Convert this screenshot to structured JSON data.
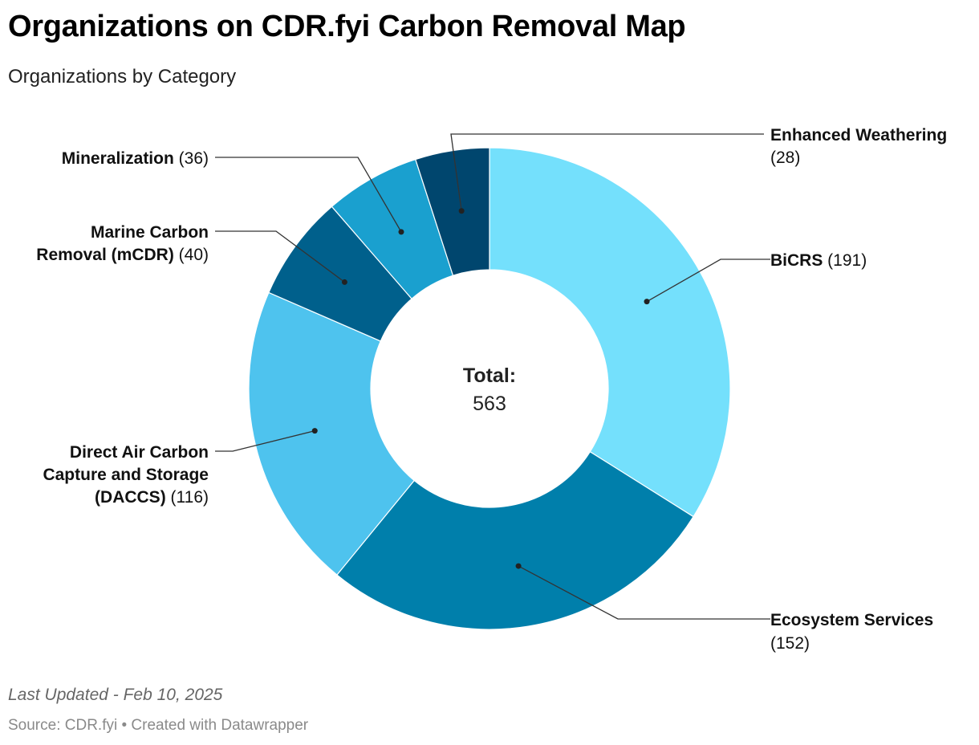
{
  "title": "Organizations on CDR.fyi Carbon Removal Map",
  "subtitle": "Organizations by Category",
  "note": "Last Updated - Feb 10, 2025",
  "footer": "Source: CDR.fyi • Created with Datawrapper",
  "chart_data": {
    "type": "pie",
    "variant": "donut",
    "center_label": "Total:",
    "center_value": "563",
    "slices": [
      {
        "name": "BiCRS",
        "value": 191,
        "color": "#74e0fc",
        "value_label": "(191)"
      },
      {
        "name": "Ecosystem Services",
        "value": 152,
        "color": "#007fab",
        "value_label": "(152)"
      },
      {
        "name": "Direct Air Carbon Capture and Storage (DACCS)",
        "value": 116,
        "color": "#4ec3ee",
        "value_label": "(116)"
      },
      {
        "name": "Marine Carbon Removal (mCDR)",
        "value": 40,
        "color": "#00608c",
        "value_label": "(40)"
      },
      {
        "name": "Mineralization",
        "value": 36,
        "color": "#1aa0cf",
        "value_label": "(36)"
      },
      {
        "name": "Enhanced Weathering",
        "value": 28,
        "color": "#00466e",
        "value_label": "(28)"
      }
    ]
  }
}
